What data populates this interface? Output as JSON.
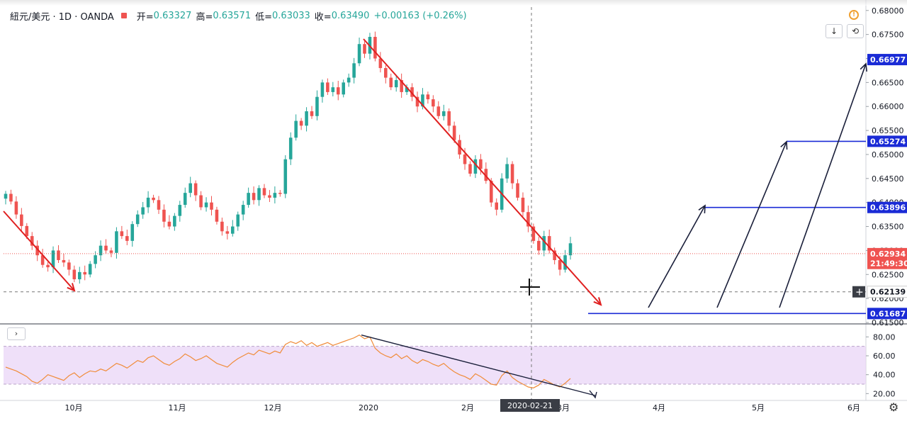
{
  "header": {
    "symbol": "紐元/美元 · 1D · OANDA",
    "open_label": "开=",
    "open": "0.63327",
    "high_label": "高=",
    "high": "0.63571",
    "low_label": "低=",
    "low": "0.63033",
    "close_label": "收=",
    "close": "0.63490",
    "change": "+0.00163 (+0.26%)"
  },
  "colors": {
    "up": "#26a69a",
    "down": "#ef5350",
    "trend": "#e02020",
    "level": "#1a2bd6",
    "rsi": "#f08c3a",
    "rsi_band": "#e9d6f7"
  },
  "icons": {
    "download": "download-icon",
    "refresh": "refresh-icon",
    "alert": "alert-icon",
    "settings": "gear-icon",
    "collapse": "chevron-right-icon"
  },
  "price_axis": {
    "ticks": [
      "0.68000",
      "0.67500",
      "0.67000",
      "0.66500",
      "0.66000",
      "0.65500",
      "0.65000",
      "0.64500",
      "0.64000",
      "0.63500",
      "0.63000",
      "0.62500",
      "0.62000",
      "0.61500"
    ],
    "labels": [
      {
        "text": "0.66977",
        "value": 0.66977,
        "style": "level"
      },
      {
        "text": "0.65274",
        "value": 0.65274,
        "style": "level"
      },
      {
        "text": "0.63896",
        "value": 0.63896,
        "style": "level"
      },
      {
        "text": "0.62934",
        "value": 0.62934,
        "style": "price"
      },
      {
        "text": "21:49:30",
        "value": 0.6273,
        "style": "price"
      },
      {
        "text": "0.62139",
        "value": 0.62139,
        "style": "cross"
      },
      {
        "text": "0.61687",
        "value": 0.61687,
        "style": "level"
      }
    ]
  },
  "rsi_axis": {
    "ticks": [
      "80.00",
      "60.00",
      "40.00",
      "20.00"
    ]
  },
  "time_axis": {
    "ticks": [
      "10月",
      "11月",
      "12月",
      "2020",
      "2月",
      "3月",
      "4月",
      "5月",
      "6月"
    ],
    "cursor_label": "2020-02-21"
  },
  "chart_data": {
    "type": "candlestick",
    "symbol": "NZD/USD",
    "interval": "1D",
    "range": [
      "2019-09-05",
      "2020-03-03"
    ],
    "ylim": [
      0.615,
      0.681
    ],
    "price_series": [
      0.6418,
      0.6402,
      0.6375,
      0.6351,
      0.633,
      0.631,
      0.629,
      0.627,
      0.6265,
      0.63,
      0.628,
      0.6275,
      0.626,
      0.624,
      0.6255,
      0.625,
      0.6272,
      0.629,
      0.631,
      0.63,
      0.6295,
      0.634,
      0.633,
      0.632,
      0.6355,
      0.6375,
      0.639,
      0.641,
      0.6405,
      0.6385,
      0.636,
      0.635,
      0.6372,
      0.6395,
      0.642,
      0.644,
      0.6415,
      0.639,
      0.64,
      0.6385,
      0.636,
      0.634,
      0.6335,
      0.635,
      0.6375,
      0.6395,
      0.642,
      0.6405,
      0.643,
      0.6415,
      0.641,
      0.642,
      0.6418,
      0.649,
      0.6535,
      0.657,
      0.656,
      0.659,
      0.658,
      0.662,
      0.665,
      0.663,
      0.664,
      0.6625,
      0.665,
      0.666,
      0.669,
      0.673,
      0.671,
      0.6745,
      0.67,
      0.668,
      0.666,
      0.664,
      0.6655,
      0.663,
      0.664,
      0.662,
      0.66,
      0.6625,
      0.6615,
      0.66,
      0.658,
      0.659,
      0.656,
      0.653,
      0.65,
      0.648,
      0.646,
      0.649,
      0.647,
      0.6445,
      0.64,
      0.6385,
      0.645,
      0.648,
      0.644,
      0.641,
      0.638,
      0.635,
      0.632,
      0.63,
      0.633,
      0.63,
      0.628,
      0.626,
      0.629,
      0.6315
    ],
    "last_price": 0.62934,
    "levels": [
      0.66977,
      0.65274,
      0.63896,
      0.61687
    ],
    "rsi": {
      "ylim": [
        15,
        90
      ],
      "band": [
        30,
        70
      ],
      "values": [
        48,
        46,
        44,
        41,
        38,
        33,
        31,
        35,
        40,
        38,
        36,
        34,
        39,
        42,
        37,
        41,
        44,
        43,
        46,
        44,
        48,
        52,
        50,
        47,
        51,
        55,
        53,
        58,
        60,
        56,
        52,
        50,
        54,
        57,
        62,
        59,
        55,
        57,
        60,
        56,
        52,
        50,
        48,
        53,
        57,
        60,
        63,
        61,
        66,
        64,
        62,
        65,
        63,
        72,
        75,
        73,
        76,
        71,
        74,
        70,
        72,
        74,
        71,
        73,
        75,
        77,
        79,
        82,
        78,
        80,
        68,
        63,
        60,
        58,
        62,
        57,
        60,
        55,
        52,
        56,
        54,
        51,
        49,
        52,
        47,
        43,
        40,
        38,
        35,
        41,
        38,
        34,
        30,
        29,
        39,
        44,
        37,
        33,
        30,
        27,
        26,
        29,
        35,
        32,
        29,
        27,
        31,
        36
      ]
    }
  }
}
